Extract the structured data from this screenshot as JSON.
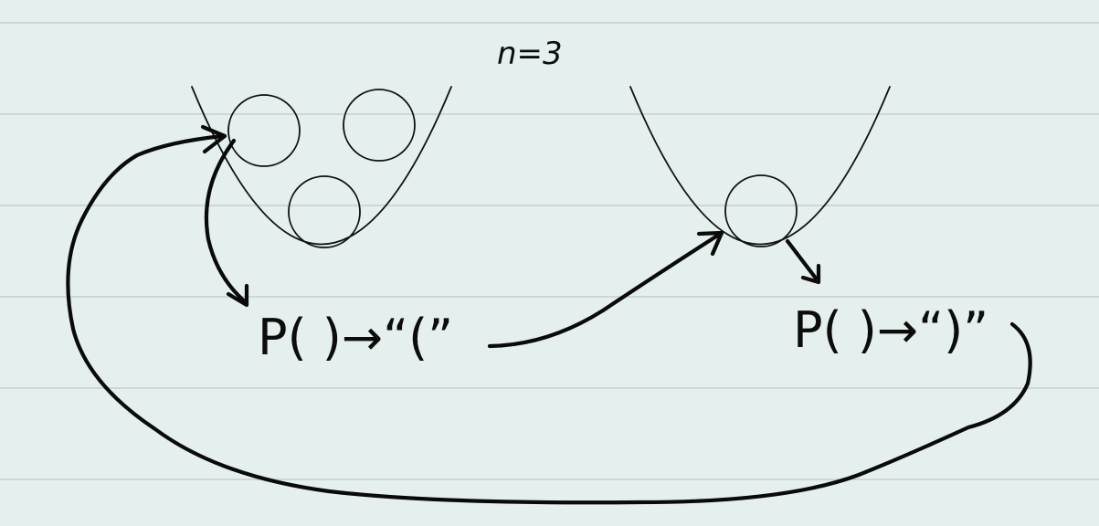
{
  "annotations": {
    "n_label": "n=3",
    "left_label": "P( )→“(”",
    "right_label": "P( )→“)”"
  },
  "left_well": {
    "ball_count": 3
  },
  "right_well": {
    "ball_count": 1
  },
  "colors": {
    "background": "#e4efee",
    "rule_lines": "#c5cfcd",
    "ink": "#0a0a0a"
  }
}
